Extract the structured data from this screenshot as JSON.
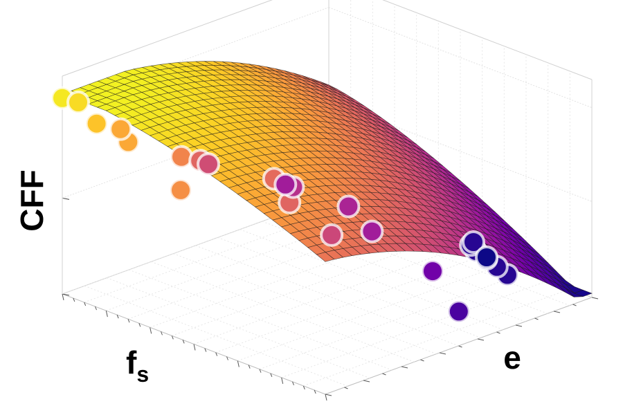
{
  "chart_data": {
    "type": "surface3d",
    "title": "",
    "zlabel": "CFF",
    "xlabel_main": "f",
    "xlabel_sub": "s",
    "ylabel": "e",
    "grid": true,
    "colormap": [
      "#0d0887",
      "#46039f",
      "#7201a8",
      "#9c179e",
      "#bd3786",
      "#d8576b",
      "#ed7953",
      "#fb9f3a",
      "#fdca26",
      "#f0f921"
    ],
    "surface": {
      "x_range": [
        0,
        1
      ],
      "e_range": [
        0,
        1
      ],
      "z_range": [
        0,
        1
      ],
      "grid_rows": 30,
      "grid_cols": 30
    },
    "points": [
      {
        "x": 0.0,
        "e": 0.0,
        "z": 0.96
      },
      {
        "x": 0.02,
        "e": 0.04,
        "z": 0.93
      },
      {
        "x": 0.1,
        "e": 0.03,
        "z": 0.87
      },
      {
        "x": 0.18,
        "e": 0.07,
        "z": 0.8
      },
      {
        "x": 0.1,
        "e": 0.12,
        "z": 0.8
      },
      {
        "x": 0.45,
        "e": 0.0,
        "z": 0.73
      },
      {
        "x": 0.25,
        "e": 0.2,
        "z": 0.7
      },
      {
        "x": 0.45,
        "e": 0.35,
        "z": 0.62
      },
      {
        "x": 0.58,
        "e": 0.28,
        "z": 0.6
      },
      {
        "x": 0.72,
        "e": 0.3,
        "z": 0.5
      },
      {
        "x": 0.2,
        "e": 0.32,
        "z": 0.6
      },
      {
        "x": 0.15,
        "e": 0.4,
        "z": 0.52
      },
      {
        "x": 0.32,
        "e": 0.55,
        "z": 0.42
      },
      {
        "x": 0.48,
        "e": 0.6,
        "z": 0.38
      },
      {
        "x": 0.62,
        "e": 0.55,
        "z": 0.35
      },
      {
        "x": 0.8,
        "e": 0.6,
        "z": 0.22
      },
      {
        "x": 0.95,
        "e": 0.55,
        "z": 0.12
      },
      {
        "x": 0.22,
        "e": 0.62,
        "z": 0.35
      },
      {
        "x": 0.78,
        "e": 0.9,
        "z": 0.05
      },
      {
        "x": 0.72,
        "e": 0.92,
        "z": 0.05
      },
      {
        "x": 0.66,
        "e": 0.94,
        "z": 0.05
      },
      {
        "x": 0.6,
        "e": 0.96,
        "z": 0.05
      },
      {
        "x": 0.56,
        "e": 0.98,
        "z": 0.05
      },
      {
        "x": 0.55,
        "e": 1.0,
        "z": 0.05
      },
      {
        "x": 0.6,
        "e": 1.0,
        "z": 0.0
      }
    ]
  }
}
